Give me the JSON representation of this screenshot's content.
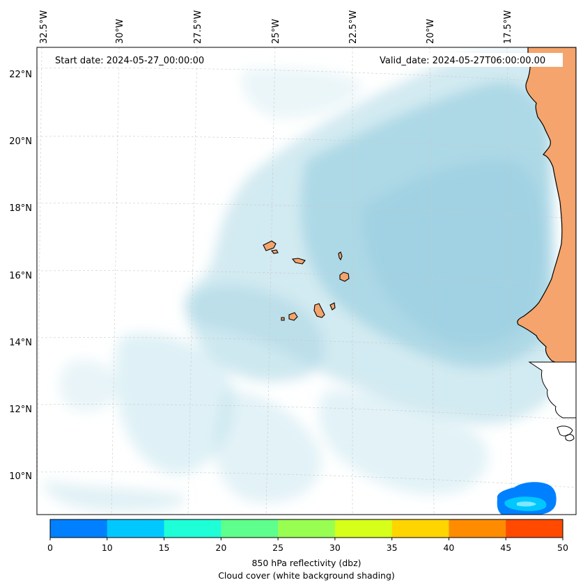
{
  "map": {
    "start_date_label": "Start date: 2024-05-27_00:00:00",
    "valid_date_label": "Valid_date: 2024-05-27T06:00:00.00",
    "lon_labels": [
      "32.5°W",
      "30°W",
      "27.5°W",
      "25°W",
      "22.5°W",
      "20°W",
      "17.5°W"
    ],
    "lat_labels": [
      "22°N",
      "20°N",
      "18°N",
      "16°N",
      "14°N",
      "12°N",
      "10°N"
    ],
    "land_color": "#f4a46c",
    "cloud_color": "#add8e6",
    "colorbar": {
      "ticks": [
        "0",
        "10",
        "15",
        "20",
        "25",
        "30",
        "35",
        "40",
        "45",
        "50"
      ],
      "colors": [
        "#0080ff",
        "#00c8ff",
        "#1effd8",
        "#5eff8c",
        "#98ff52",
        "#d6ff1a",
        "#ffd500",
        "#ff8c00",
        "#ff4a00"
      ],
      "caption_line1": "850 hPa reflectivity (dbz)",
      "caption_line2": "Cloud cover (white background shading)"
    }
  }
}
